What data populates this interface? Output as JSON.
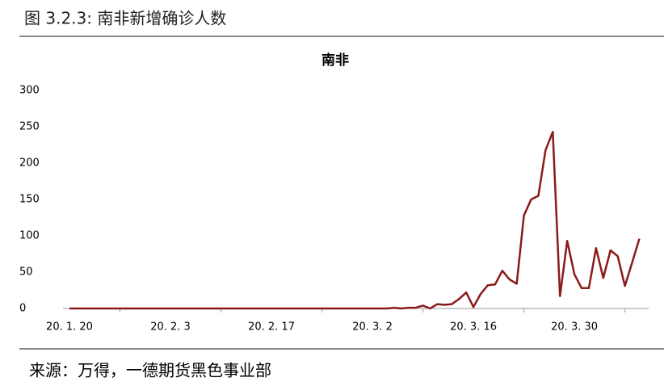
{
  "figure_label": "图 3.2.3:    南非新增确诊人数",
  "source": "来源：万得，一德期货黑色事业部",
  "chart_data": {
    "type": "line",
    "title": "南非",
    "categories": [
      "20. 1. 20",
      null,
      null,
      null,
      null,
      null,
      null,
      null,
      null,
      null,
      null,
      null,
      null,
      null,
      "20. 2. 3",
      null,
      null,
      null,
      null,
      null,
      null,
      null,
      null,
      null,
      null,
      null,
      null,
      null,
      "20. 2. 17",
      null,
      null,
      null,
      null,
      null,
      null,
      null,
      null,
      null,
      null,
      null,
      null,
      null,
      "20. 3. 2",
      null,
      null,
      null,
      null,
      null,
      null,
      null,
      null,
      null,
      null,
      null,
      null,
      null,
      "20. 3. 16",
      null,
      null,
      null,
      null,
      null,
      null,
      null,
      null,
      null,
      null,
      null,
      null,
      null,
      "20. 3. 30",
      null,
      null,
      null,
      null,
      null,
      null,
      null,
      null,
      null
    ],
    "series": [
      {
        "name": "南非",
        "color": "#8b1a1a",
        "values": [
          0,
          0,
          0,
          0,
          0,
          0,
          0,
          0,
          0,
          0,
          0,
          0,
          0,
          0,
          0,
          0,
          0,
          0,
          0,
          0,
          0,
          0,
          0,
          0,
          0,
          0,
          0,
          0,
          0,
          0,
          0,
          0,
          0,
          0,
          0,
          0,
          0,
          0,
          0,
          0,
          0,
          0,
          0,
          0,
          0,
          1,
          0,
          1,
          1,
          4,
          0,
          6,
          5,
          6,
          13,
          22,
          2,
          20,
          32,
          33,
          52,
          40,
          34,
          128,
          150,
          155,
          218,
          243,
          17,
          93,
          47,
          28,
          28,
          83,
          42,
          80,
          72,
          31,
          63,
          96
        ]
      }
    ],
    "ylim": [
      0,
      300
    ],
    "yticks": [
      0,
      50,
      100,
      150,
      200,
      250,
      300
    ],
    "grid": false
  }
}
